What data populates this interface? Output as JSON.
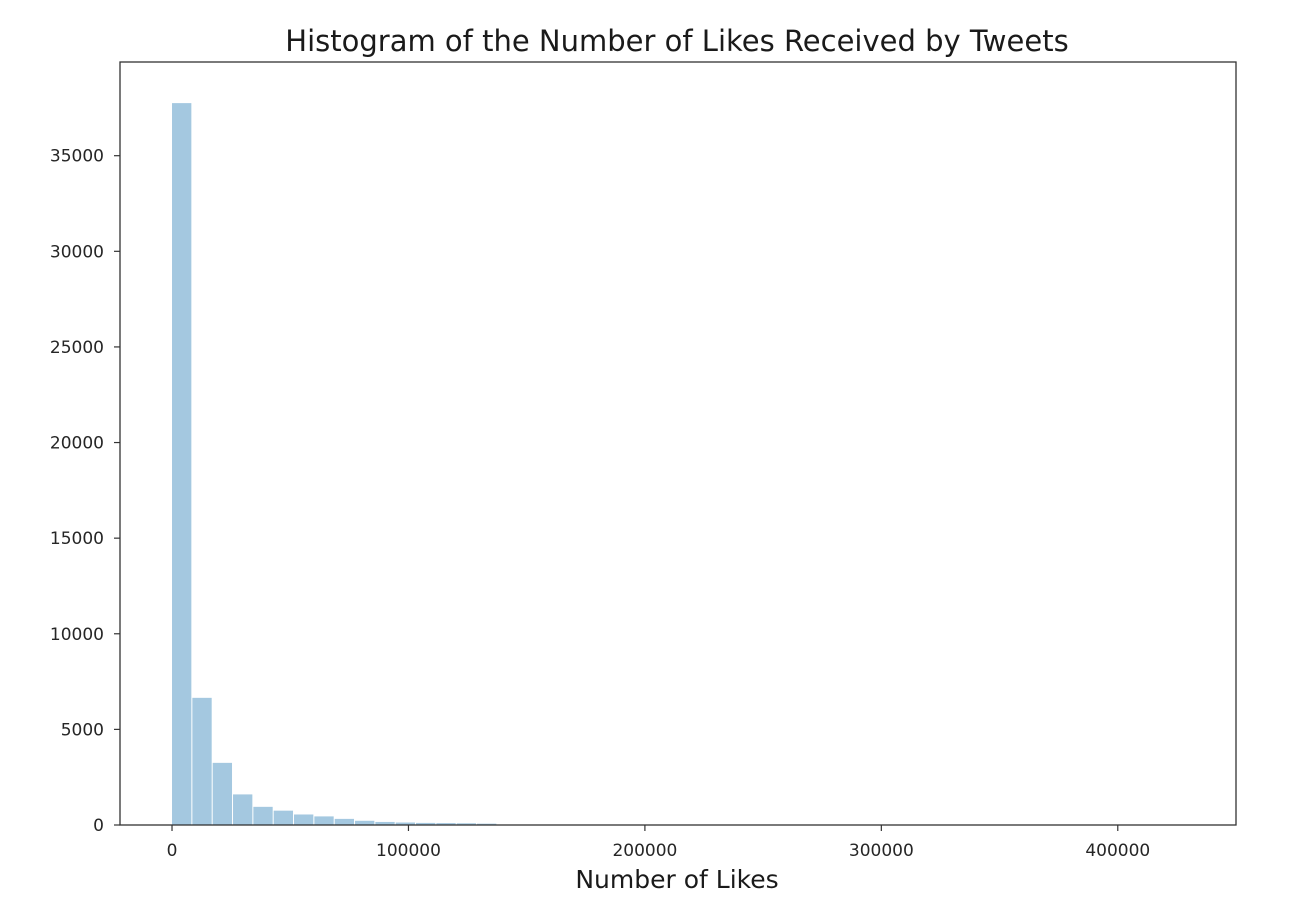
{
  "chart_data": {
    "type": "bar",
    "title": "Histogram of the Number of Likes Received by Tweets",
    "xlabel": "Number of Likes",
    "ylabel": "",
    "xlim": [
      -22000,
      450000
    ],
    "ylim": [
      0,
      39900
    ],
    "x_ticks": [
      0,
      100000,
      200000,
      300000,
      400000
    ],
    "y_ticks": [
      0,
      5000,
      10000,
      15000,
      20000,
      25000,
      30000,
      35000
    ],
    "bin_width": 8600,
    "bin_edges": [
      0,
      8600,
      17200,
      25800,
      34400,
      43000,
      51600,
      60200,
      68800,
      77400,
      86000,
      94600,
      103200,
      111800,
      120400,
      129000,
      137600
    ],
    "values": [
      37750,
      6650,
      3250,
      1600,
      950,
      750,
      550,
      450,
      320,
      220,
      160,
      130,
      110,
      100,
      90,
      70
    ],
    "bar_color": "#a4c8e0",
    "grid": false,
    "legend": "none"
  }
}
